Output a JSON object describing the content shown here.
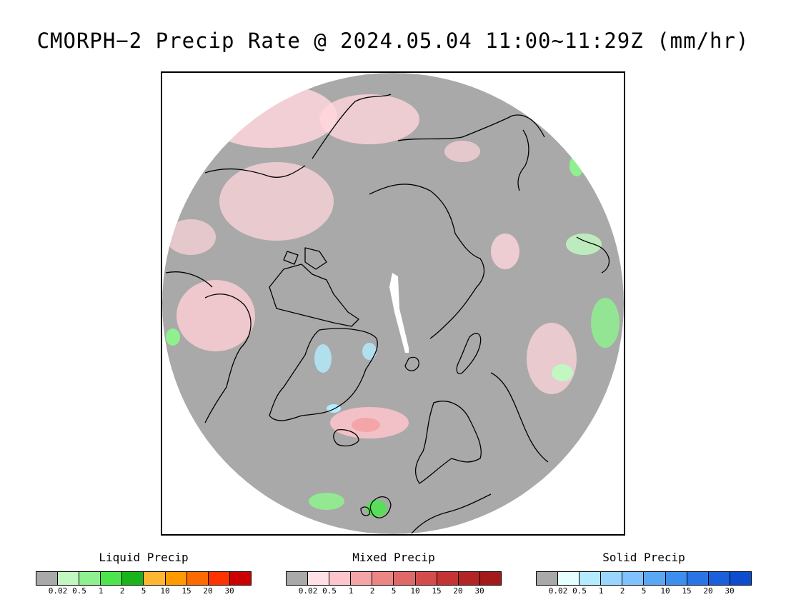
{
  "title": "CMORPH−2 Precip Rate @ 2024.05.04 11:00~11:29Z (mm/hr)",
  "map": {
    "projection": "north-polar-stereographic",
    "no_precip_color": "#a9a9a9",
    "missing_color": "#ffffff",
    "land_outline_color": "#000000"
  },
  "legend": {
    "ticks": [
      "0.02",
      "0.5",
      "1",
      "2",
      "5",
      "10",
      "15",
      "20",
      "30"
    ],
    "panels": [
      {
        "key": "liquid",
        "title": "Liquid Precip",
        "colors": [
          "#a9a9a9",
          "#c2f7c2",
          "#8ff08f",
          "#4ce64c",
          "#1ab31a",
          "#ffb733",
          "#ff9900",
          "#ff6a00",
          "#ff3300",
          "#cc0000"
        ]
      },
      {
        "key": "mixed",
        "title": "Mixed Precip",
        "colors": [
          "#a9a9a9",
          "#ffe0e6",
          "#ffc5cc",
          "#f4a5a8",
          "#ec8585",
          "#e06868",
          "#d44d4d",
          "#c43434",
          "#b32424",
          "#a31a1a"
        ]
      },
      {
        "key": "solid",
        "title": "Solid Precip",
        "colors": [
          "#a9a9a9",
          "#e6ffff",
          "#b3ecff",
          "#99d6ff",
          "#80c2ff",
          "#5aa8f5",
          "#3d8fef",
          "#2a75e6",
          "#1a5fdb",
          "#0d4ccc"
        ]
      }
    ]
  }
}
